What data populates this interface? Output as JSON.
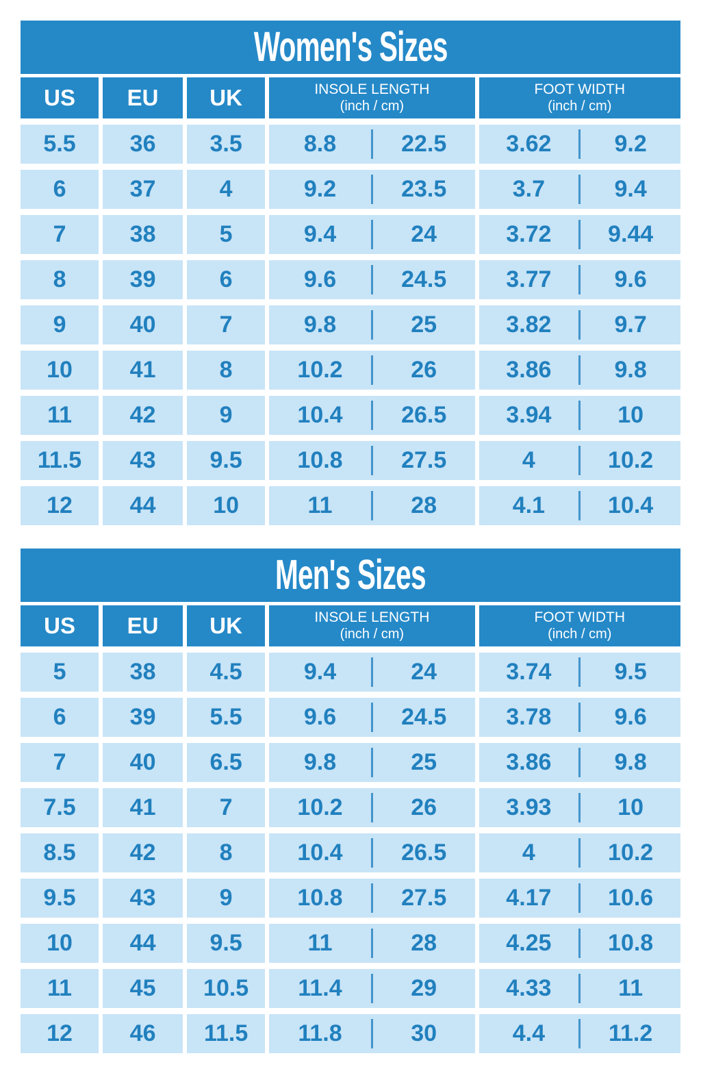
{
  "colors": {
    "header_bg": "#2589C8",
    "row_bg": "#C8E4F7",
    "row_text": "#2180BE",
    "header_text": "#ffffff",
    "page_bg": "#ffffff"
  },
  "chart_data": [
    {
      "type": "table",
      "title": "Women's Sizes",
      "columns": [
        {
          "label": "US"
        },
        {
          "label": "EU"
        },
        {
          "label": "UK"
        },
        {
          "label": "INSOLE LENGTH",
          "sub": "(inch / cm)"
        },
        {
          "label": "FOOT WIDTH",
          "sub": "(inch / cm)"
        }
      ],
      "rows": [
        {
          "us": "5.5",
          "eu": "36",
          "uk": "3.5",
          "insole_in": "8.8",
          "insole_cm": "22.5",
          "width_in": "3.62",
          "width_cm": "9.2"
        },
        {
          "us": "6",
          "eu": "37",
          "uk": "4",
          "insole_in": "9.2",
          "insole_cm": "23.5",
          "width_in": "3.7",
          "width_cm": "9.4"
        },
        {
          "us": "7",
          "eu": "38",
          "uk": "5",
          "insole_in": "9.4",
          "insole_cm": "24",
          "width_in": "3.72",
          "width_cm": "9.44"
        },
        {
          "us": "8",
          "eu": "39",
          "uk": "6",
          "insole_in": "9.6",
          "insole_cm": "24.5",
          "width_in": "3.77",
          "width_cm": "9.6"
        },
        {
          "us": "9",
          "eu": "40",
          "uk": "7",
          "insole_in": "9.8",
          "insole_cm": "25",
          "width_in": "3.82",
          "width_cm": "9.7"
        },
        {
          "us": "10",
          "eu": "41",
          "uk": "8",
          "insole_in": "10.2",
          "insole_cm": "26",
          "width_in": "3.86",
          "width_cm": "9.8"
        },
        {
          "us": "11",
          "eu": "42",
          "uk": "9",
          "insole_in": "10.4",
          "insole_cm": "26.5",
          "width_in": "3.94",
          "width_cm": "10"
        },
        {
          "us": "11.5",
          "eu": "43",
          "uk": "9.5",
          "insole_in": "10.8",
          "insole_cm": "27.5",
          "width_in": "4",
          "width_cm": "10.2"
        },
        {
          "us": "12",
          "eu": "44",
          "uk": "10",
          "insole_in": "11",
          "insole_cm": "28",
          "width_in": "4.1",
          "width_cm": "10.4"
        }
      ]
    },
    {
      "type": "table",
      "title": "Men's Sizes",
      "columns": [
        {
          "label": "US"
        },
        {
          "label": "EU"
        },
        {
          "label": "UK"
        },
        {
          "label": "INSOLE LENGTH",
          "sub": "(inch / cm)"
        },
        {
          "label": "FOOT WIDTH",
          "sub": "(inch / cm)"
        }
      ],
      "rows": [
        {
          "us": "5",
          "eu": "38",
          "uk": "4.5",
          "insole_in": "9.4",
          "insole_cm": "24",
          "width_in": "3.74",
          "width_cm": "9.5"
        },
        {
          "us": "6",
          "eu": "39",
          "uk": "5.5",
          "insole_in": "9.6",
          "insole_cm": "24.5",
          "width_in": "3.78",
          "width_cm": "9.6"
        },
        {
          "us": "7",
          "eu": "40",
          "uk": "6.5",
          "insole_in": "9.8",
          "insole_cm": "25",
          "width_in": "3.86",
          "width_cm": "9.8"
        },
        {
          "us": "7.5",
          "eu": "41",
          "uk": "7",
          "insole_in": "10.2",
          "insole_cm": "26",
          "width_in": "3.93",
          "width_cm": "10"
        },
        {
          "us": "8.5",
          "eu": "42",
          "uk": "8",
          "insole_in": "10.4",
          "insole_cm": "26.5",
          "width_in": "4",
          "width_cm": "10.2"
        },
        {
          "us": "9.5",
          "eu": "43",
          "uk": "9",
          "insole_in": "10.8",
          "insole_cm": "27.5",
          "width_in": "4.17",
          "width_cm": "10.6"
        },
        {
          "us": "10",
          "eu": "44",
          "uk": "9.5",
          "insole_in": "11",
          "insole_cm": "28",
          "width_in": "4.25",
          "width_cm": "10.8"
        },
        {
          "us": "11",
          "eu": "45",
          "uk": "10.5",
          "insole_in": "11.4",
          "insole_cm": "29",
          "width_in": "4.33",
          "width_cm": "11"
        },
        {
          "us": "12",
          "eu": "46",
          "uk": "11.5",
          "insole_in": "11.8",
          "insole_cm": "30",
          "width_in": "4.4",
          "width_cm": "11.2"
        }
      ]
    }
  ]
}
